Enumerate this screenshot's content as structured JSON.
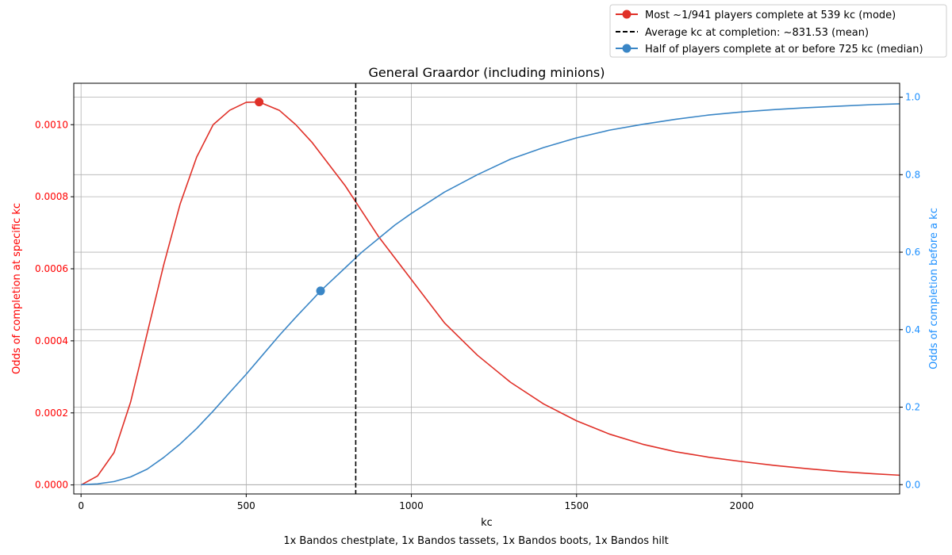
{
  "chart_data": {
    "type": "line",
    "title": "General Graardor (including minions)",
    "xlabel": "kc",
    "ylabel_left": "Odds of completion at specific kc",
    "ylabel_right": "Odds of completion before a kc",
    "caption": "1x Bandos chestplate, 1x Bandos tassets, 1x Bandos boots, 1x Bandos hilt",
    "xlim": [
      -22,
      2478
    ],
    "ylim_left": [
      -2.5e-05,
      0.001115
    ],
    "ylim_right": [
      -0.024,
      1.036
    ],
    "x_ticks": [
      0,
      500,
      1000,
      1500,
      2000
    ],
    "x_tick_labels": [
      "0",
      "500",
      "1000",
      "1500",
      "2000"
    ],
    "y_left_ticks": [
      0,
      0.0002,
      0.0004,
      0.0006,
      0.0008,
      0.001
    ],
    "y_left_tick_labels": [
      "0.0000",
      "0.0002",
      "0.0004",
      "0.0006",
      "0.0008",
      "0.0010"
    ],
    "y_right_ticks": [
      0,
      0.2,
      0.4,
      0.6,
      0.8,
      1.0
    ],
    "y_right_tick_labels": [
      "0.0",
      "0.2",
      "0.4",
      "0.6",
      "0.8",
      "1.0"
    ],
    "grid": true,
    "legend_position": "top-right, outside plot",
    "legend": [
      {
        "label": "Most ~1/941 players complete at 539 kc (mode)",
        "kind": "line-marker",
        "color": "#e03028"
      },
      {
        "label": "Average kc at completion: ~831.53 (mean)",
        "kind": "dashed",
        "color": "#000000"
      },
      {
        "label": "Half of players complete at or before 725 kc (median)",
        "kind": "line-marker",
        "color": "#3a86c6"
      }
    ],
    "series": [
      {
        "axis": "left",
        "color": "#e03028",
        "x": [
          0,
          50,
          100,
          150,
          200,
          250,
          300,
          350,
          400,
          450,
          500,
          539,
          600,
          650,
          700,
          750,
          800,
          850,
          900,
          950,
          1000,
          1100,
          1200,
          1300,
          1400,
          1500,
          1600,
          1700,
          1800,
          1900,
          2000,
          2100,
          2200,
          2300,
          2400,
          2478
        ],
        "y": [
          0,
          2.5e-05,
          9e-05,
          0.00023,
          0.00042,
          0.00061,
          0.00078,
          0.00091,
          0.001,
          0.00104,
          0.001062,
          0.001063,
          0.00104,
          0.001,
          0.00095,
          0.00089,
          0.00083,
          0.00076,
          0.00069,
          0.00063,
          0.00057,
          0.00045,
          0.00036,
          0.000285,
          0.000225,
          0.000178,
          0.000141,
          0.000113,
          9.2e-05,
          7.7e-05,
          6.5e-05,
          5.4e-05,
          4.5e-05,
          3.7e-05,
          3.1e-05,
          2.7e-05
        ]
      },
      {
        "axis": "right",
        "color": "#3a86c6",
        "x": [
          0,
          50,
          100,
          150,
          200,
          250,
          300,
          350,
          400,
          450,
          500,
          550,
          600,
          650,
          700,
          725,
          750,
          800,
          850,
          900,
          950,
          1000,
          1100,
          1200,
          1300,
          1400,
          1500,
          1600,
          1700,
          1800,
          1900,
          2000,
          2100,
          2200,
          2300,
          2400,
          2478
        ],
        "y": [
          0,
          0.002,
          0.008,
          0.02,
          0.04,
          0.07,
          0.105,
          0.145,
          0.19,
          0.238,
          0.285,
          0.335,
          0.385,
          0.432,
          0.477,
          0.5,
          0.52,
          0.56,
          0.6,
          0.635,
          0.67,
          0.7,
          0.755,
          0.8,
          0.84,
          0.87,
          0.895,
          0.915,
          0.93,
          0.943,
          0.954,
          0.962,
          0.968,
          0.973,
          0.977,
          0.981,
          0.983
        ]
      }
    ],
    "markers": [
      {
        "name": "mode",
        "x": 539,
        "y": 0.001063,
        "axis": "left",
        "color": "#e03028"
      },
      {
        "name": "median",
        "x": 725,
        "y": 0.5,
        "axis": "right",
        "color": "#3a86c6"
      }
    ],
    "vline": {
      "name": "mean",
      "x": 831.53,
      "color": "#000000",
      "style": "dashed"
    },
    "colors": {
      "left_axis": "#ff0000",
      "right_axis": "#1e90ff",
      "grid": "#b0b0b0"
    }
  }
}
